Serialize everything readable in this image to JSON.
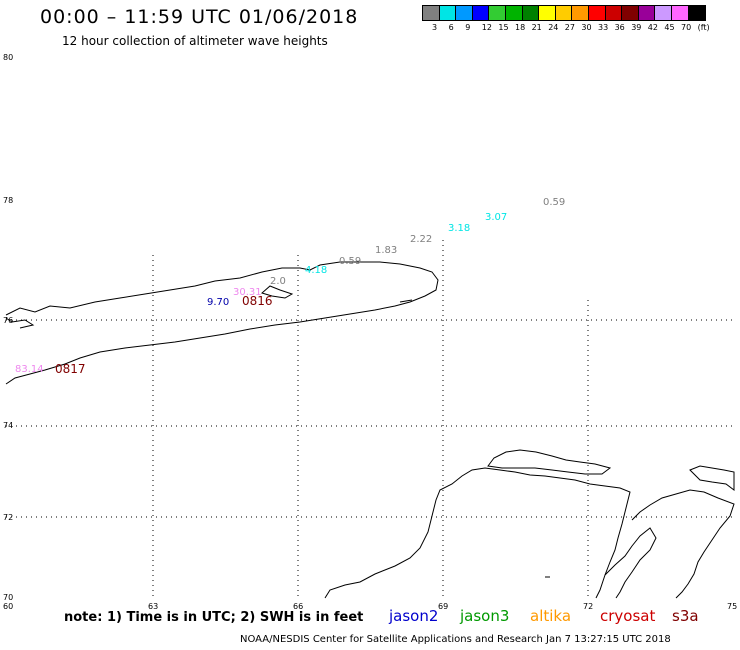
{
  "header": {
    "title": "00:00 – 11:59 UTC 01/06/2018",
    "subtitle": "12 hour collection of altimeter wave heights"
  },
  "scale": {
    "colors": [
      "#808080",
      "#00e5e5",
      "#0099ff",
      "#0000ff",
      "#33cc33",
      "#00b300",
      "#008000",
      "#ffff00",
      "#ffcc00",
      "#ff9900",
      "#ff0000",
      "#cc0000",
      "#800000",
      "#990099",
      "#cc99ff",
      "#ff66ff",
      "#000000"
    ],
    "labels": [
      "3",
      "6",
      "9",
      "12",
      "15",
      "18",
      "21",
      "24",
      "27",
      "30",
      "33",
      "36",
      "39",
      "42",
      "45",
      "70",
      "(ft)"
    ]
  },
  "axes": {
    "lat_labels": [
      "80",
      "78",
      "76",
      "74",
      "72",
      "70"
    ],
    "lon_labels": [
      "60",
      "63",
      "66",
      "69",
      "72",
      "75"
    ]
  },
  "observations": [
    {
      "text": "0.59",
      "color": "#808080"
    },
    {
      "text": "3.07",
      "color": "#00e5e5"
    },
    {
      "text": "3.18",
      "color": "#00e5e5"
    },
    {
      "text": "2.22",
      "color": "#808080"
    },
    {
      "text": "1.83",
      "color": "#808080"
    },
    {
      "text": "0.59",
      "color": "#808080"
    },
    {
      "text": "4.18",
      "color": "#00e5e5"
    },
    {
      "text": "2.0",
      "color": "#808080"
    },
    {
      "text": "30.31",
      "color": "#ee88ee"
    },
    {
      "text": "9.70",
      "color": "#0000aa"
    },
    {
      "text": "0816",
      "color": "#800000"
    },
    {
      "text": "83.14",
      "color": "#ee88ee"
    },
    {
      "text": "0817",
      "color": "#800000"
    }
  ],
  "footer": {
    "note": "note: 1) Time is in UTC; 2) SWH is in feet",
    "satellites": [
      {
        "name": "jason2",
        "color": "#0000cc"
      },
      {
        "name": "jason3",
        "color": "#009900"
      },
      {
        "name": "altika",
        "color": "#ff9900"
      },
      {
        "name": "cryosat",
        "color": "#cc0000"
      },
      {
        "name": "s3a",
        "color": "#800000"
      }
    ],
    "credit": "NOAA/NESDIS Center for Satellite Applications and Research    Jan  7 13:27:15 UTC 2018"
  }
}
